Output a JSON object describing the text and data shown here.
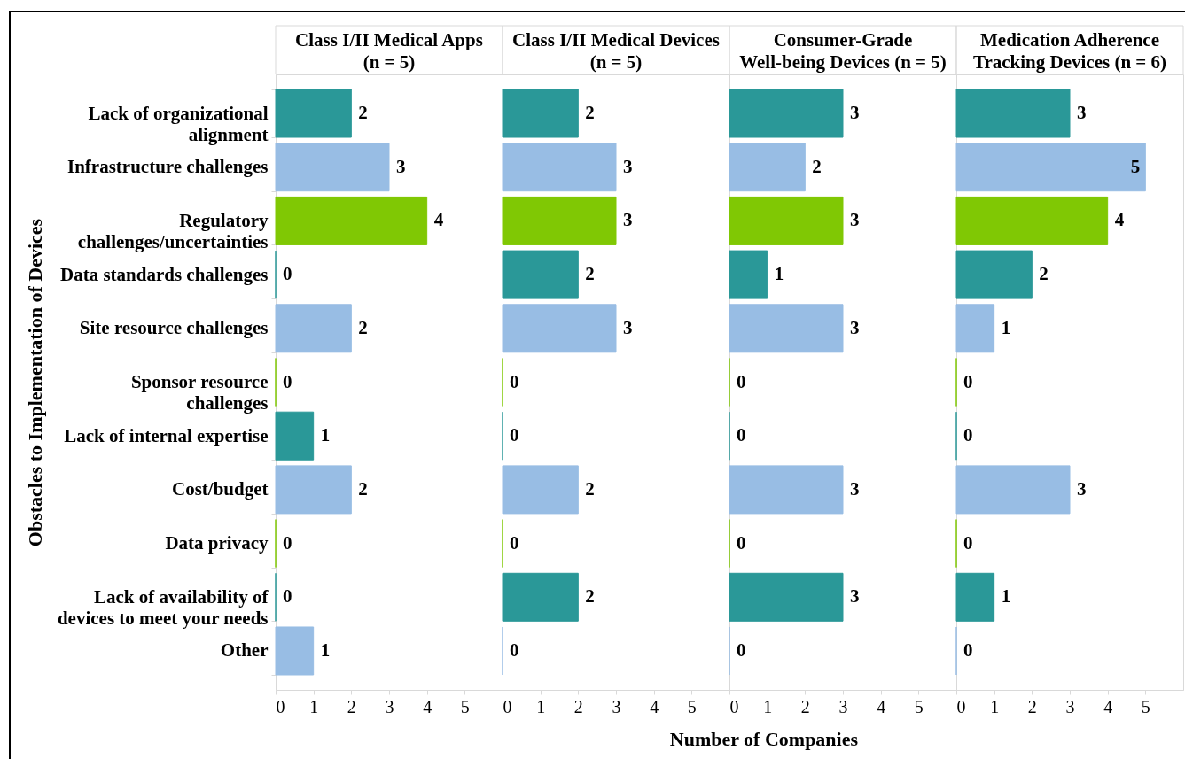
{
  "chart_data": [
    {
      "type": "bar",
      "orientation": "horizontal",
      "title": "Class I/II Medical Apps\n(n = 5)",
      "ylabel": "Obstacles to Implementation of Devices",
      "categories": [
        "Lack of organizational alignment",
        "Infrastructure challenges",
        "Regulatory challenges/uncertainties",
        "Data standards challenges",
        "Site resource challenges",
        "Sponsor resource challenges",
        "Lack of internal expertise",
        "Cost/budget",
        "Data privacy",
        "Lack of availability of devices to meet your needs",
        "Other"
      ],
      "values": [
        2,
        3,
        4,
        0,
        2,
        0,
        1,
        2,
        0,
        0,
        1
      ],
      "colors": [
        "#2a9898",
        "#98bde4",
        "#80c804",
        "#2a9898",
        "#98bde4",
        "#80c804",
        "#2a9898",
        "#98bde4",
        "#80c804",
        "#2a9898",
        "#98bde4"
      ],
      "xlim": [
        0,
        6
      ],
      "xticks": [
        0,
        1,
        2,
        3,
        4,
        5
      ],
      "data_labels": true
    },
    {
      "type": "bar",
      "orientation": "horizontal",
      "title": "Class I/II Medical Devices\n(n = 5)",
      "categories": [
        "Lack of organizational alignment",
        "Infrastructure challenges",
        "Regulatory challenges/uncertainties",
        "Data standards challenges",
        "Site resource challenges",
        "Sponsor resource challenges",
        "Lack of internal expertise",
        "Cost/budget",
        "Data privacy",
        "Lack of availability of devices to meet your needs",
        "Other"
      ],
      "values": [
        2,
        3,
        3,
        2,
        3,
        0,
        0,
        2,
        0,
        2,
        0
      ],
      "colors": [
        "#2a9898",
        "#98bde4",
        "#80c804",
        "#2a9898",
        "#98bde4",
        "#80c804",
        "#2a9898",
        "#98bde4",
        "#80c804",
        "#2a9898",
        "#98bde4"
      ],
      "xlim": [
        0,
        6
      ],
      "xticks": [
        0,
        1,
        2,
        3,
        4,
        5
      ],
      "data_labels": true,
      "tick_labels": "x"
    },
    {
      "type": "bar",
      "orientation": "horizontal",
      "title": "Consumer-Grade\nWell-being Devices (n = 5)",
      "xlabel": "Number of Companies",
      "categories": [
        "Lack of organizational alignment",
        "Infrastructure challenges",
        "Regulatory challenges/uncertainties",
        "Data standards challenges",
        "Site resource challenges",
        "Sponsor resource challenges",
        "Lack of internal expertise",
        "Cost/budget",
        "Data privacy",
        "Lack of availability of devices to meet your needs",
        "Other"
      ],
      "values": [
        3,
        2,
        3,
        1,
        3,
        0,
        0,
        3,
        0,
        3,
        0
      ],
      "colors": [
        "#2a9898",
        "#98bde4",
        "#80c804",
        "#2a9898",
        "#98bde4",
        "#80c804",
        "#2a9898",
        "#98bde4",
        "#80c804",
        "#2a9898",
        "#98bde4"
      ],
      "xlim": [
        0,
        6
      ],
      "xticks": [
        0,
        1,
        2,
        3,
        4,
        5
      ],
      "data_labels": true,
      "tick_labels": "x"
    },
    {
      "type": "bar",
      "orientation": "horizontal",
      "title": "Medication Adherence\nTracking Devices (n = 6)",
      "categories": [
        "Lack of organizational alignment",
        "Infrastructure challenges",
        "Regulatory challenges/uncertainties",
        "Data standards challenges",
        "Site resource challenges",
        "Sponsor resource challenges",
        "Lack of internal expertise",
        "Cost/budget",
        "Data privacy",
        "Lack of availability of devices to meet your needs",
        "Other"
      ],
      "values": [
        3,
        5,
        4,
        2,
        1,
        0,
        0,
        3,
        0,
        1,
        0
      ],
      "colors": [
        "#2a9898",
        "#98bde4",
        "#80c804",
        "#2a9898",
        "#98bde4",
        "#80c804",
        "#2a9898",
        "#98bde4",
        "#80c804",
        "#2a9898",
        "#98bde4"
      ],
      "xlim": [
        0,
        6
      ],
      "xticks": [
        0,
        1,
        2,
        3,
        4,
        5
      ],
      "data_labels": true,
      "tick_labels": "x"
    }
  ]
}
